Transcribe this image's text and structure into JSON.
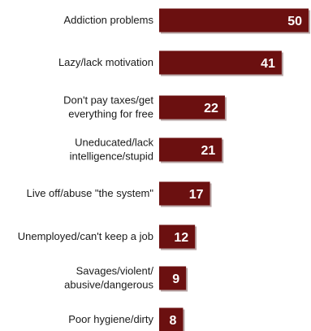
{
  "chart_data": {
    "type": "bar",
    "orientation": "horizontal",
    "categories": [
      [
        "Addiction problems"
      ],
      [
        "Lazy/lack motivation"
      ],
      [
        "Don't pay taxes/get",
        "everything for free"
      ],
      [
        "Uneducated/lack",
        "intelligence/stupid"
      ],
      [
        "Live off/abuse \"the system\""
      ],
      [
        "Unemployed/can't keep a job"
      ],
      [
        "Savages/violent/",
        "abusive/dangerous"
      ],
      [
        "Poor hygiene/dirty"
      ]
    ],
    "values": [
      50,
      41,
      22,
      21,
      17,
      12,
      9,
      8
    ],
    "data_labels": [
      "50",
      "41",
      "22",
      "21",
      "17",
      "12",
      "9",
      "8"
    ],
    "xlim": [
      0,
      50
    ],
    "grid": false,
    "legend": "none",
    "colors": {
      "bar": "#6b1010",
      "bar_shadow": "#b9a7a7",
      "label_text": "#ffffff"
    }
  }
}
